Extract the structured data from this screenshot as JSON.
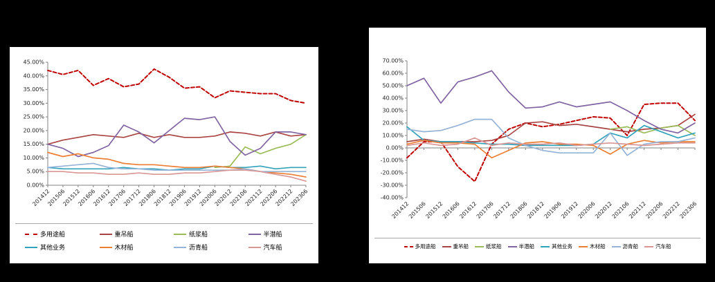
{
  "background": "#000000",
  "chart_data": [
    {
      "id": "left",
      "type": "line",
      "title": "",
      "xlabel": "",
      "ylabel": "",
      "grid": false,
      "legend_position": "bottom",
      "legend_rows": 2,
      "y_axis": {
        "min": 0,
        "max": 45,
        "step": 5,
        "format": "0.00%"
      },
      "categories": [
        "201412",
        "201506",
        "201512",
        "201606",
        "201612",
        "201706",
        "201712",
        "201806",
        "201812",
        "201906",
        "201912",
        "202006",
        "202012",
        "202106",
        "202112",
        "202206",
        "202212",
        "202306"
      ],
      "series": [
        {
          "key": "multi-purpose-ship",
          "name": "多用途船",
          "color": "#C00000",
          "dash": true,
          "values": [
            42,
            40.5,
            42,
            36.5,
            39,
            36,
            37,
            42.5,
            39.5,
            35.5,
            36,
            32,
            34.5,
            34,
            33.5,
            33.5,
            31,
            30
          ]
        },
        {
          "key": "heavy-lift-ship",
          "name": "重吊船",
          "color": "#A94442",
          "dash": false,
          "values": [
            15,
            16.5,
            17.5,
            18.5,
            18,
            17.5,
            19,
            17.5,
            18.5,
            17.5,
            17.5,
            18,
            19.5,
            19,
            18,
            19.5,
            18,
            18.5
          ]
        },
        {
          "key": "pulp-ship",
          "name": "纸浆船",
          "color": "#9BBB59",
          "dash": false,
          "values": [
            null,
            null,
            null,
            null,
            null,
            null,
            null,
            null,
            null,
            null,
            null,
            6.5,
            7,
            14,
            11.5,
            13.5,
            15,
            18.5
          ]
        },
        {
          "key": "semi-submersible-ship",
          "name": "半潜船",
          "color": "#8064A2",
          "dash": false,
          "values": [
            15,
            13.5,
            10.5,
            12,
            14.5,
            22,
            19.5,
            15.5,
            20,
            24.5,
            24,
            25,
            16,
            11,
            13.5,
            19.5,
            19.5,
            18.5
          ]
        },
        {
          "key": "other-business",
          "name": "其他业务",
          "color": "#31A2BC",
          "dash": false,
          "values": [
            6.5,
            6,
            6,
            6,
            6,
            6.5,
            6,
            6,
            5.5,
            6,
            6,
            7,
            6.5,
            6.5,
            7,
            6,
            6.5,
            6.5
          ]
        },
        {
          "key": "timber-ship",
          "name": "木材船",
          "color": "#ED7D31",
          "dash": false,
          "values": [
            12,
            10.5,
            11.5,
            10,
            9.5,
            8,
            7.5,
            7.5,
            7,
            6.5,
            6.5,
            7,
            6.5,
            6,
            5,
            4.5,
            4,
            3
          ]
        },
        {
          "key": "asphalt-ship",
          "name": "沥青船",
          "color": "#95B3D7",
          "dash": false,
          "values": [
            6.5,
            7,
            7.5,
            8,
            6.5,
            6,
            6,
            5.5,
            5.5,
            5.5,
            5.5,
            5.5,
            5.5,
            6,
            5,
            5,
            5,
            5
          ]
        },
        {
          "key": "car-carrier",
          "name": "汽车船",
          "color": "#D99694",
          "dash": false,
          "values": [
            5,
            5,
            4.5,
            4.5,
            4,
            4,
            4.5,
            4,
            4,
            4.5,
            4.5,
            5,
            5.5,
            5.5,
            5,
            4,
            3,
            1.5
          ]
        }
      ]
    },
    {
      "id": "right",
      "type": "line",
      "title": "",
      "xlabel": "",
      "ylabel": "",
      "grid": false,
      "legend_position": "bottom",
      "legend_rows": 1,
      "y_axis": {
        "min": -40,
        "max": 70,
        "step": 10,
        "format": "0.00%"
      },
      "categories": [
        "201412",
        "201506",
        "201512",
        "201606",
        "201612",
        "201706",
        "201712",
        "201806",
        "201812",
        "201906",
        "201912",
        "202006",
        "202012",
        "202106",
        "202112",
        "202206",
        "202212",
        "202306"
      ],
      "series": [
        {
          "key": "multi-purpose-ship",
          "name": "多用途船",
          "color": "#C00000",
          "dash": true,
          "values": [
            -8,
            5,
            5,
            -15,
            -27,
            3,
            15,
            20,
            17,
            19,
            22,
            25,
            24,
            10,
            35,
            36,
            36,
            22
          ]
        },
        {
          "key": "heavy-lift-ship",
          "name": "重吊船",
          "color": "#A94442",
          "dash": false,
          "values": [
            5,
            7,
            5,
            5,
            5,
            6,
            10,
            20,
            21,
            18,
            19,
            17,
            15,
            13,
            15,
            16,
            18,
            27
          ]
        },
        {
          "key": "pulp-ship",
          "name": "纸浆船",
          "color": "#9BBB59",
          "dash": false,
          "values": [
            null,
            null,
            null,
            null,
            null,
            null,
            null,
            null,
            null,
            null,
            null,
            null,
            15,
            17,
            12,
            16,
            18,
            10
          ]
        },
        {
          "key": "semi-submersible-ship",
          "name": "半潜船",
          "color": "#8064A2",
          "dash": false,
          "values": [
            50,
            56,
            36,
            53,
            57,
            62,
            45,
            32,
            33,
            37,
            33,
            35,
            37,
            30,
            22,
            15,
            12,
            20
          ]
        },
        {
          "key": "other-business",
          "name": "其他业务",
          "color": "#31A2BC",
          "dash": false,
          "values": [
            17,
            6,
            5,
            5,
            4,
            3,
            3,
            2,
            2,
            2,
            2,
            3,
            12,
            8,
            18,
            13,
            8,
            12
          ]
        },
        {
          "key": "timber-ship",
          "name": "木材船",
          "color": "#ED7D31",
          "dash": false,
          "values": [
            3,
            6,
            4,
            4,
            3,
            -8,
            -2,
            4,
            5,
            3,
            3,
            2,
            -5,
            3,
            6,
            4,
            5,
            5
          ]
        },
        {
          "key": "asphalt-ship",
          "name": "沥青船",
          "color": "#95B3D7",
          "dash": false,
          "values": [
            15,
            13,
            14,
            18,
            23,
            23,
            8,
            2,
            -2,
            -4,
            -4,
            -4,
            12,
            -6,
            3,
            5,
            5,
            8
          ]
        },
        {
          "key": "car-carrier",
          "name": "汽车船",
          "color": "#D99694",
          "dash": false,
          "values": [
            2,
            4,
            2,
            3,
            8,
            2,
            4,
            3,
            3,
            4,
            2,
            3,
            4,
            3,
            2,
            3,
            4,
            4
          ]
        }
      ]
    }
  ]
}
